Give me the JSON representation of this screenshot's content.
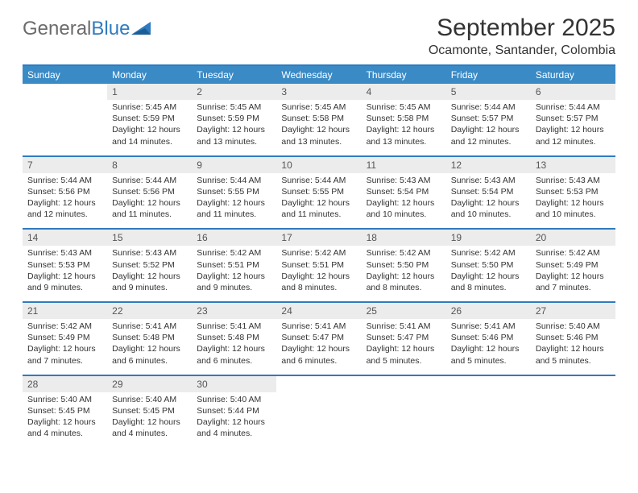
{
  "logo": {
    "textGray": "General",
    "textBlue": "Blue"
  },
  "title": "September 2025",
  "location": "Ocamonte, Santander, Colombia",
  "colors": {
    "header_bg": "#3a8ac6",
    "header_text": "#ffffff",
    "divider": "#2f7bbf",
    "daynum_bg": "#ececec",
    "logo_gray": "#6b6b6b",
    "logo_blue": "#2f7bbf"
  },
  "typography": {
    "title_fontsize": 30,
    "location_fontsize": 16,
    "dayhdr_fontsize": 12,
    "cell_fontsize": 10.5
  },
  "dayHeaders": [
    "Sunday",
    "Monday",
    "Tuesday",
    "Wednesday",
    "Thursday",
    "Friday",
    "Saturday"
  ],
  "weeks": [
    [
      {
        "num": "",
        "sunrise": "",
        "sunset": "",
        "daylight": ""
      },
      {
        "num": "1",
        "sunrise": "Sunrise: 5:45 AM",
        "sunset": "Sunset: 5:59 PM",
        "daylight": "Daylight: 12 hours and 14 minutes."
      },
      {
        "num": "2",
        "sunrise": "Sunrise: 5:45 AM",
        "sunset": "Sunset: 5:59 PM",
        "daylight": "Daylight: 12 hours and 13 minutes."
      },
      {
        "num": "3",
        "sunrise": "Sunrise: 5:45 AM",
        "sunset": "Sunset: 5:58 PM",
        "daylight": "Daylight: 12 hours and 13 minutes."
      },
      {
        "num": "4",
        "sunrise": "Sunrise: 5:45 AM",
        "sunset": "Sunset: 5:58 PM",
        "daylight": "Daylight: 12 hours and 13 minutes."
      },
      {
        "num": "5",
        "sunrise": "Sunrise: 5:44 AM",
        "sunset": "Sunset: 5:57 PM",
        "daylight": "Daylight: 12 hours and 12 minutes."
      },
      {
        "num": "6",
        "sunrise": "Sunrise: 5:44 AM",
        "sunset": "Sunset: 5:57 PM",
        "daylight": "Daylight: 12 hours and 12 minutes."
      }
    ],
    [
      {
        "num": "7",
        "sunrise": "Sunrise: 5:44 AM",
        "sunset": "Sunset: 5:56 PM",
        "daylight": "Daylight: 12 hours and 12 minutes."
      },
      {
        "num": "8",
        "sunrise": "Sunrise: 5:44 AM",
        "sunset": "Sunset: 5:56 PM",
        "daylight": "Daylight: 12 hours and 11 minutes."
      },
      {
        "num": "9",
        "sunrise": "Sunrise: 5:44 AM",
        "sunset": "Sunset: 5:55 PM",
        "daylight": "Daylight: 12 hours and 11 minutes."
      },
      {
        "num": "10",
        "sunrise": "Sunrise: 5:44 AM",
        "sunset": "Sunset: 5:55 PM",
        "daylight": "Daylight: 12 hours and 11 minutes."
      },
      {
        "num": "11",
        "sunrise": "Sunrise: 5:43 AM",
        "sunset": "Sunset: 5:54 PM",
        "daylight": "Daylight: 12 hours and 10 minutes."
      },
      {
        "num": "12",
        "sunrise": "Sunrise: 5:43 AM",
        "sunset": "Sunset: 5:54 PM",
        "daylight": "Daylight: 12 hours and 10 minutes."
      },
      {
        "num": "13",
        "sunrise": "Sunrise: 5:43 AM",
        "sunset": "Sunset: 5:53 PM",
        "daylight": "Daylight: 12 hours and 10 minutes."
      }
    ],
    [
      {
        "num": "14",
        "sunrise": "Sunrise: 5:43 AM",
        "sunset": "Sunset: 5:53 PM",
        "daylight": "Daylight: 12 hours and 9 minutes."
      },
      {
        "num": "15",
        "sunrise": "Sunrise: 5:43 AM",
        "sunset": "Sunset: 5:52 PM",
        "daylight": "Daylight: 12 hours and 9 minutes."
      },
      {
        "num": "16",
        "sunrise": "Sunrise: 5:42 AM",
        "sunset": "Sunset: 5:51 PM",
        "daylight": "Daylight: 12 hours and 9 minutes."
      },
      {
        "num": "17",
        "sunrise": "Sunrise: 5:42 AM",
        "sunset": "Sunset: 5:51 PM",
        "daylight": "Daylight: 12 hours and 8 minutes."
      },
      {
        "num": "18",
        "sunrise": "Sunrise: 5:42 AM",
        "sunset": "Sunset: 5:50 PM",
        "daylight": "Daylight: 12 hours and 8 minutes."
      },
      {
        "num": "19",
        "sunrise": "Sunrise: 5:42 AM",
        "sunset": "Sunset: 5:50 PM",
        "daylight": "Daylight: 12 hours and 8 minutes."
      },
      {
        "num": "20",
        "sunrise": "Sunrise: 5:42 AM",
        "sunset": "Sunset: 5:49 PM",
        "daylight": "Daylight: 12 hours and 7 minutes."
      }
    ],
    [
      {
        "num": "21",
        "sunrise": "Sunrise: 5:42 AM",
        "sunset": "Sunset: 5:49 PM",
        "daylight": "Daylight: 12 hours and 7 minutes."
      },
      {
        "num": "22",
        "sunrise": "Sunrise: 5:41 AM",
        "sunset": "Sunset: 5:48 PM",
        "daylight": "Daylight: 12 hours and 6 minutes."
      },
      {
        "num": "23",
        "sunrise": "Sunrise: 5:41 AM",
        "sunset": "Sunset: 5:48 PM",
        "daylight": "Daylight: 12 hours and 6 minutes."
      },
      {
        "num": "24",
        "sunrise": "Sunrise: 5:41 AM",
        "sunset": "Sunset: 5:47 PM",
        "daylight": "Daylight: 12 hours and 6 minutes."
      },
      {
        "num": "25",
        "sunrise": "Sunrise: 5:41 AM",
        "sunset": "Sunset: 5:47 PM",
        "daylight": "Daylight: 12 hours and 5 minutes."
      },
      {
        "num": "26",
        "sunrise": "Sunrise: 5:41 AM",
        "sunset": "Sunset: 5:46 PM",
        "daylight": "Daylight: 12 hours and 5 minutes."
      },
      {
        "num": "27",
        "sunrise": "Sunrise: 5:40 AM",
        "sunset": "Sunset: 5:46 PM",
        "daylight": "Daylight: 12 hours and 5 minutes."
      }
    ],
    [
      {
        "num": "28",
        "sunrise": "Sunrise: 5:40 AM",
        "sunset": "Sunset: 5:45 PM",
        "daylight": "Daylight: 12 hours and 4 minutes."
      },
      {
        "num": "29",
        "sunrise": "Sunrise: 5:40 AM",
        "sunset": "Sunset: 5:45 PM",
        "daylight": "Daylight: 12 hours and 4 minutes."
      },
      {
        "num": "30",
        "sunrise": "Sunrise: 5:40 AM",
        "sunset": "Sunset: 5:44 PM",
        "daylight": "Daylight: 12 hours and 4 minutes."
      },
      {
        "num": "",
        "sunrise": "",
        "sunset": "",
        "daylight": ""
      },
      {
        "num": "",
        "sunrise": "",
        "sunset": "",
        "daylight": ""
      },
      {
        "num": "",
        "sunrise": "",
        "sunset": "",
        "daylight": ""
      },
      {
        "num": "",
        "sunrise": "",
        "sunset": "",
        "daylight": ""
      }
    ]
  ]
}
